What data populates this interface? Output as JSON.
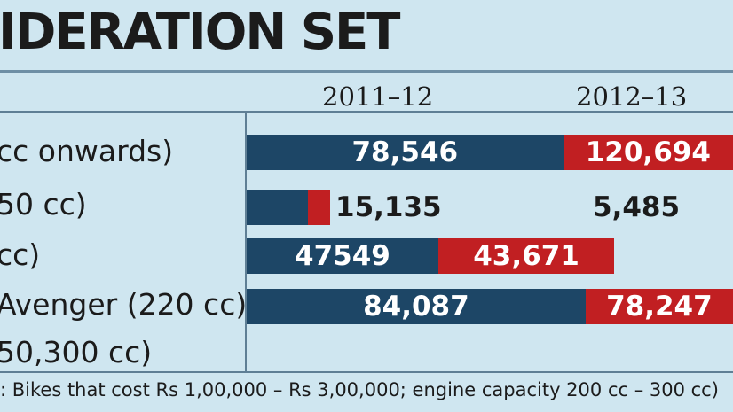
{
  "title": "IDERATION SET",
  "footnote": ": Bikes that cost Rs 1,00,000 – Rs 3,00,000; engine capacity 200 cc – 300 cc)",
  "colors": {
    "series1": "#1d4666",
    "series2": "#c11f22",
    "background": "#cfe6f0"
  },
  "chart_data": {
    "type": "bar",
    "orientation": "horizontal",
    "stacked": true,
    "title": "IDERATION SET",
    "categories": [
      "cc onwards)",
      "50 cc)",
      "cc)",
      "Avenger (220 cc) + 50,300 cc)"
    ],
    "category_lines": [
      [
        "cc onwards)"
      ],
      [
        "50 cc)"
      ],
      [
        "cc)"
      ],
      [
        "Avenger (220 cc) +",
        "50,300 cc)"
      ]
    ],
    "series": [
      {
        "name": "2011–12",
        "values": [
          78546,
          15135,
          47549,
          84087
        ],
        "labels": [
          "78,546",
          "15,135",
          "47549",
          "84,087"
        ]
      },
      {
        "name": "2012–13",
        "values": [
          120694,
          5485,
          43671,
          78247
        ],
        "labels": [
          "120,694",
          "5,485",
          "43,671",
          "78,247"
        ]
      }
    ],
    "grid": false,
    "legend": "top column headers"
  }
}
